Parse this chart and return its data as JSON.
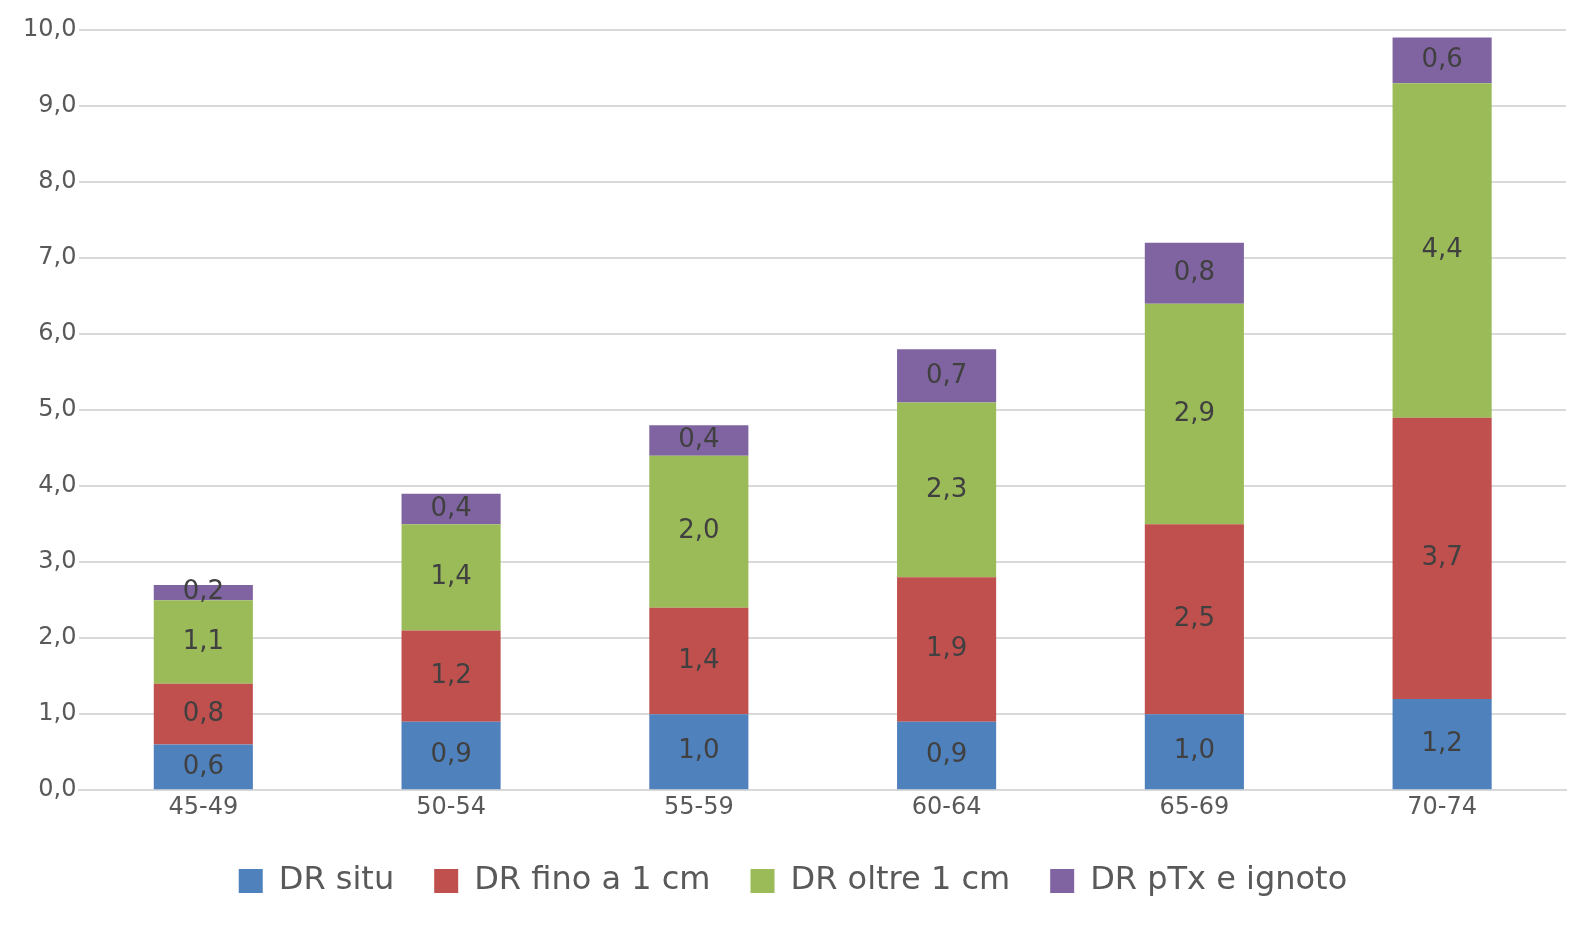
{
  "chart_data": {
    "type": "bar",
    "stacked": true,
    "categories": [
      "45-49",
      "50-54",
      "55-59",
      "60-64",
      "65-69",
      "70-74"
    ],
    "series": [
      {
        "name": "DR situ",
        "color": "#4f81bd",
        "values": [
          0.6,
          0.9,
          1.0,
          0.9,
          1.0,
          1.2
        ],
        "value_labels": [
          "0,6",
          "0,9",
          "1,0",
          "0,9",
          "1,0",
          "1,2"
        ]
      },
      {
        "name": "DR fino a 1 cm",
        "color": "#c0504d",
        "values": [
          0.8,
          1.2,
          1.4,
          1.9,
          2.5,
          3.7
        ],
        "value_labels": [
          "0,8",
          "1,2",
          "1,4",
          "1,9",
          "2,5",
          "3,7"
        ]
      },
      {
        "name": "DR oltre 1 cm",
        "color": "#9bbb59",
        "values": [
          1.1,
          1.4,
          2.0,
          2.3,
          2.9,
          4.4
        ],
        "value_labels": [
          "1,1",
          "1,4",
          "2,0",
          "2,3",
          "2,9",
          "4,4"
        ]
      },
      {
        "name": "DR pTx e ignoto",
        "color": "#8064a2",
        "values": [
          0.2,
          0.4,
          0.4,
          0.7,
          0.8,
          0.6
        ],
        "value_labels": [
          "0,2",
          "0,4",
          "0,4",
          "0,7",
          "0,8",
          "0,6"
        ]
      }
    ],
    "ylim": [
      0,
      10
    ],
    "yticks": [
      {
        "value": 0,
        "label": "0,0"
      },
      {
        "value": 1,
        "label": "1,0"
      },
      {
        "value": 2,
        "label": "2,0"
      },
      {
        "value": 3,
        "label": "3,0"
      },
      {
        "value": 4,
        "label": "4,0"
      },
      {
        "value": 5,
        "label": "5,0"
      },
      {
        "value": 6,
        "label": "6,0"
      },
      {
        "value": 7,
        "label": "7,0"
      },
      {
        "value": 8,
        "label": "8,0"
      },
      {
        "value": 9,
        "label": "9,0"
      },
      {
        "value": 10,
        "label": "10,0"
      }
    ],
    "grid": "y",
    "legend": "bottom"
  }
}
